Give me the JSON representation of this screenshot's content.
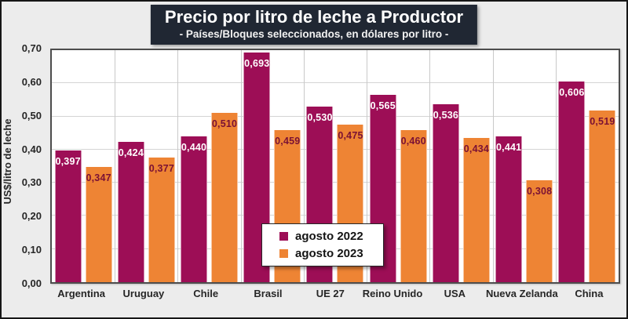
{
  "title": "Precio por litro de leche a Productor",
  "subtitle": "- Países/Bloques seleccionados, en dólares por litro -",
  "chart_data": {
    "type": "bar",
    "categories": [
      "Argentina",
      "Uruguay",
      "Chile",
      "Brasil",
      "UE 27",
      "Reino Unido",
      "USA",
      "Nueva Zelanda",
      "China"
    ],
    "series": [
      {
        "name": "agosto 2022",
        "color": "#9D0E56",
        "label_color": "#ffffff",
        "values": [
          0.397,
          0.424,
          0.44,
          0.693,
          0.53,
          0.565,
          0.536,
          0.441,
          0.606
        ],
        "labels": [
          "0,397",
          "0,424",
          "0,440",
          "0,693",
          "0,530",
          "0,565",
          "0,536",
          "0,441",
          "0,606"
        ]
      },
      {
        "name": "agosto 2023",
        "color": "#EE8434",
        "label_color": "#7A1134",
        "values": [
          0.347,
          0.377,
          0.51,
          0.459,
          0.475,
          0.46,
          0.434,
          0.308,
          0.519
        ],
        "labels": [
          "0,347",
          "0,377",
          "0,510",
          "0,459",
          "0,475",
          "0,460",
          "0,434",
          "0,308",
          "0,519"
        ]
      }
    ],
    "xlabel": "",
    "ylabel": "US$/litro de leche",
    "ylim": [
      0,
      0.7
    ],
    "ytick_step": 0.1,
    "yticks": [
      "0,00",
      "0,10",
      "0,20",
      "0,30",
      "0,40",
      "0,50",
      "0,60",
      "0,70"
    ],
    "grid": "horizontal and vertical, light gray",
    "legend_position": "overlay bottom-center of plot"
  },
  "colors": {
    "page_background": "#ECECEC",
    "title_background": "#202733",
    "title_text": "#ffffff",
    "plot_background": "#ffffff",
    "plot_border": "#4d4d4d",
    "gridline": "#d4d4d4",
    "series_2022": "#9D0E56",
    "series_2023": "#EE8434"
  }
}
